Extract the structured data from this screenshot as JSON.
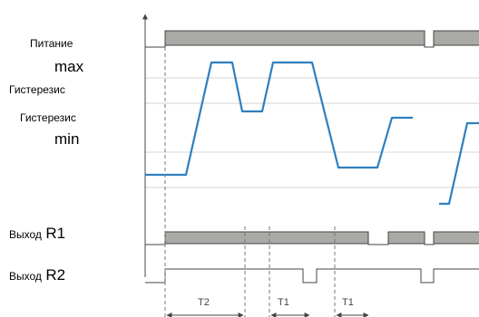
{
  "labels": {
    "power": "Питание",
    "max": "max",
    "hyst1": "Гистерезис",
    "hyst2": "Гистерезис",
    "min": "min",
    "out1_prefix": "Выход",
    "out1_id": "R1",
    "out2_prefix": "Выход",
    "out2_id": "R2"
  },
  "timers": {
    "t2": "T2",
    "t1a": "T1",
    "t1b": "T1"
  },
  "colors": {
    "signal": "#2e7fc0",
    "bar": "#a9a9a6",
    "grid": "#d5d5d5",
    "line": "#444444"
  }
}
